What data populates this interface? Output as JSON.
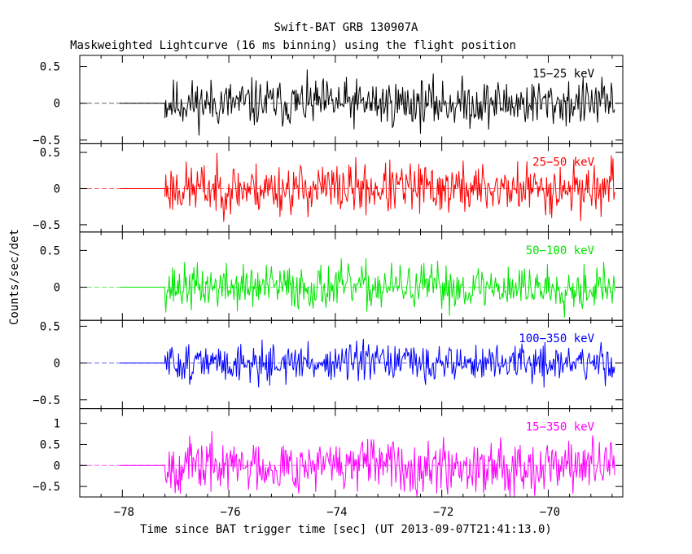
{
  "title": "Swift-BAT GRB 130907A",
  "subtitle": "Maskweighted Lightcurve (16 ms binning) using the flight position",
  "ylabel": "Counts/sec/det",
  "xlabel": "Time since BAT trigger time [sec] (UT 2013-09-07T21:41:13.0)",
  "chart_data": {
    "type": "line",
    "title": "Swift-BAT GRB 130907A",
    "subtitle": "Maskweighted Lightcurve (16 ms binning) using the flight position",
    "xlabel": "Time since BAT trigger time [sec] (UT 2013-09-07T21:41:13.0)",
    "ylabel": "Counts/sec/det",
    "xlim": [
      -78.8,
      -68.6
    ],
    "x_ticks": [
      -78,
      -76,
      -74,
      -72,
      -70
    ],
    "x_tick_labels": [
      "−78",
      "−76",
      "−74",
      "−72",
      "−70"
    ],
    "binning_s": 0.016,
    "data_start": -77.2,
    "data_end": -68.75,
    "panels": [
      {
        "name": "15-25 keV",
        "label": "15−25 keV",
        "color": "#000000",
        "ylim": [
          -0.55,
          0.65
        ],
        "yticks": [
          0.5,
          0,
          -0.5
        ],
        "ytick_labels": [
          "0.5",
          "0",
          "−0.5"
        ],
        "noise_amp": 0.2,
        "seed": 11
      },
      {
        "name": "25-50 keV",
        "label": "25−50 keV",
        "color": "#ff0000",
        "ylim": [
          -0.6,
          0.62
        ],
        "yticks": [
          0.5,
          0,
          -0.5
        ],
        "ytick_labels": [
          "0.5",
          "0",
          "−0.5"
        ],
        "noise_amp": 0.22,
        "seed": 23
      },
      {
        "name": "50-100 keV",
        "label": "50−100 keV",
        "color": "#00e600",
        "ylim": [
          -0.45,
          0.75
        ],
        "yticks": [
          0.5,
          0
        ],
        "ytick_labels": [
          "0.5",
          "0"
        ],
        "noise_amp": 0.19,
        "seed": 37
      },
      {
        "name": "100-350 keV",
        "label": "100−350 keV",
        "color": "#0000ff",
        "ylim": [
          -0.62,
          0.58
        ],
        "yticks": [
          0.5,
          0,
          -0.5
        ],
        "ytick_labels": [
          "0.5",
          "0",
          "−0.5"
        ],
        "noise_amp": 0.16,
        "seed": 51
      },
      {
        "name": "15-350 keV",
        "label": "15−350 keV",
        "color": "#ff00ff",
        "ylim": [
          -0.75,
          1.35
        ],
        "yticks": [
          1,
          0.5,
          0,
          -0.5
        ],
        "ytick_labels": [
          "1",
          "0.5",
          "0",
          "−0.5"
        ],
        "noise_amp": 0.38,
        "seed": 67
      }
    ]
  }
}
